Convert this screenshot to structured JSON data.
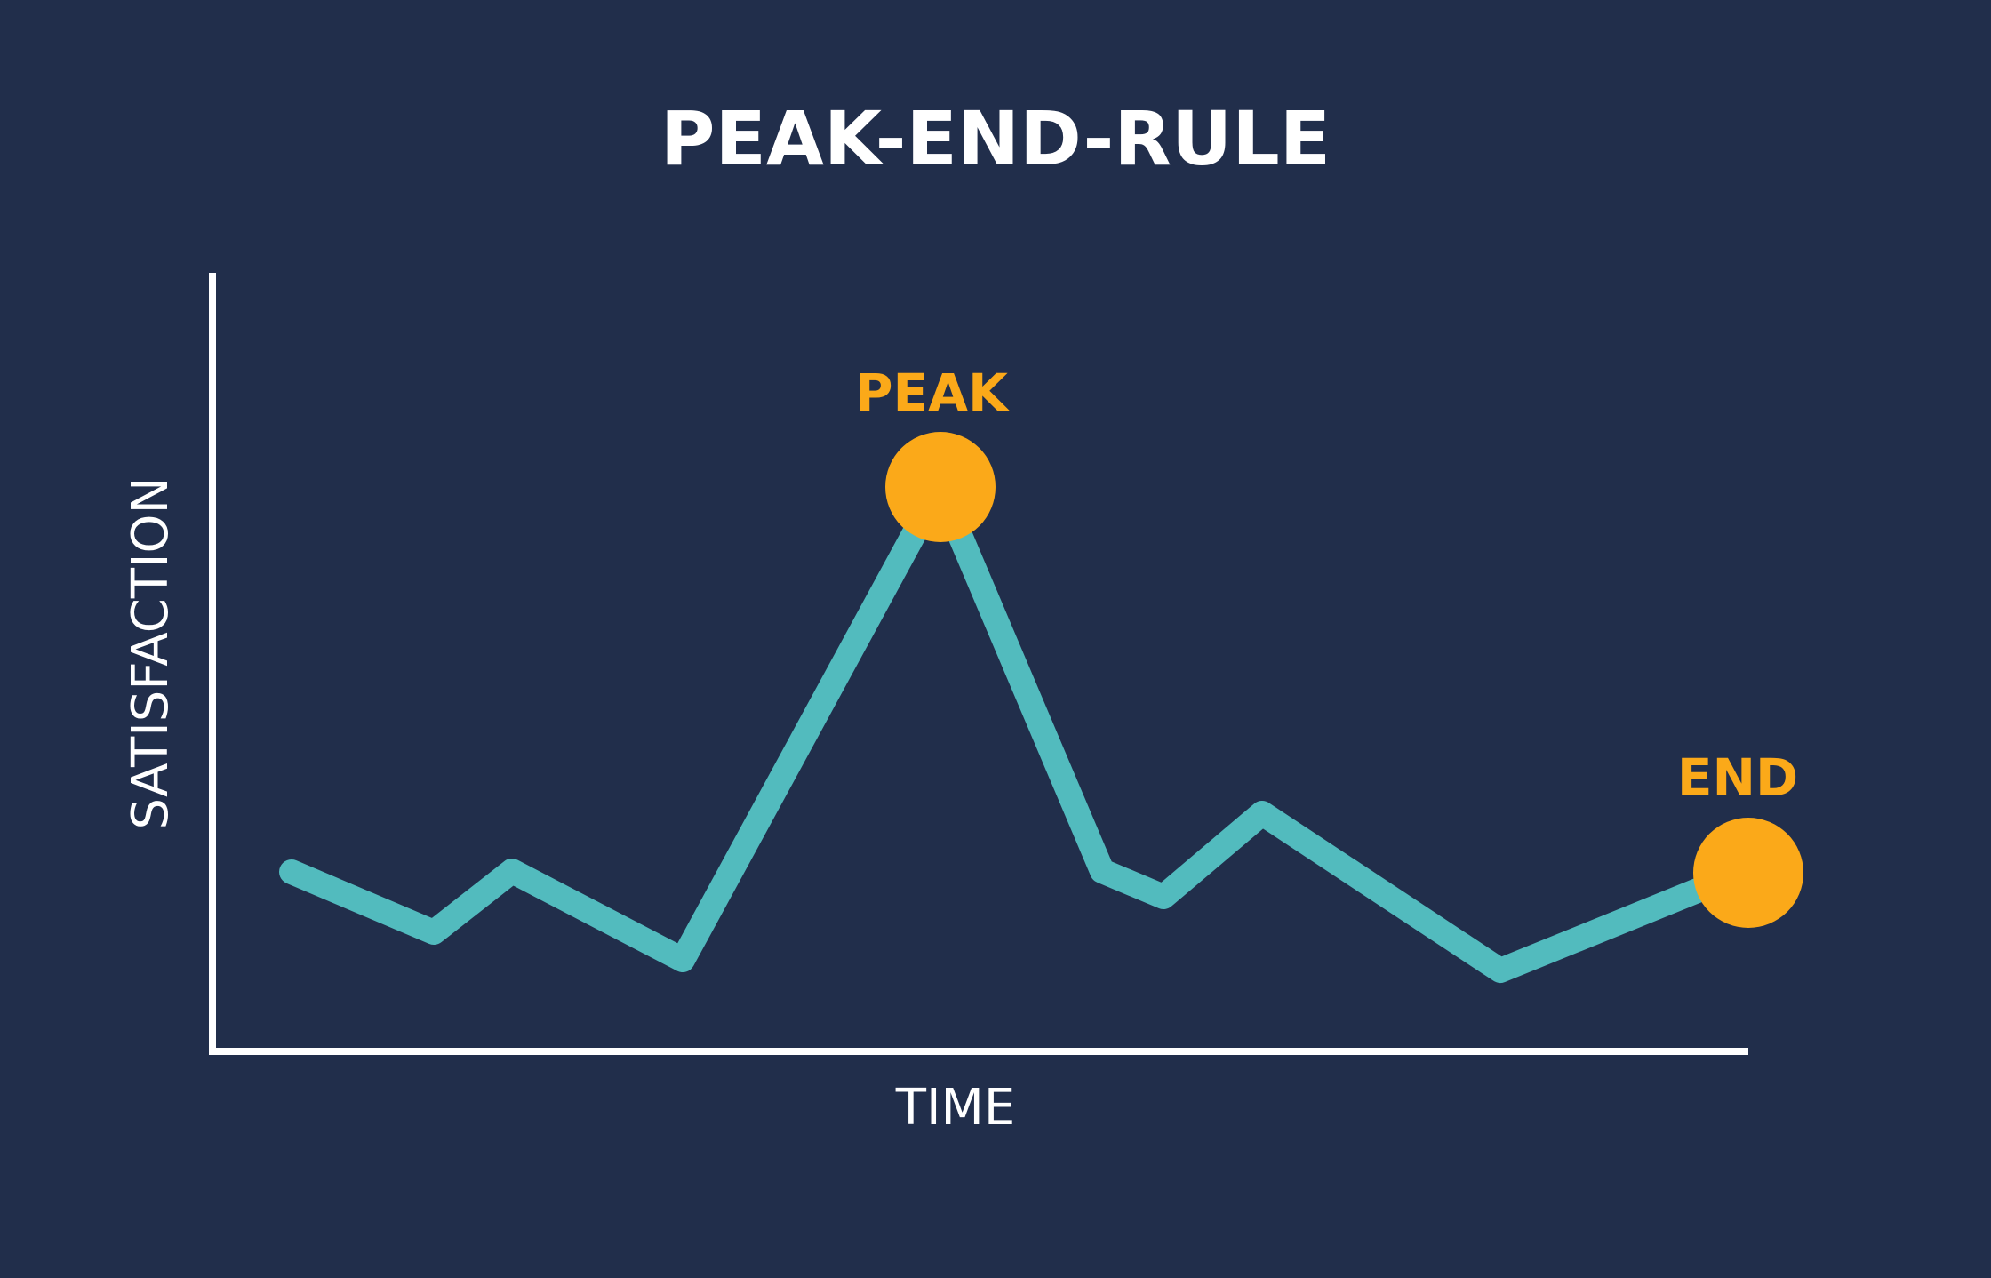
{
  "title": "PEAK-END-RULE",
  "axes": {
    "y_label": "SATISFACTION",
    "x_label": "TIME"
  },
  "colors": {
    "background": "#212e4b",
    "axis": "#ffffff",
    "line": "#52bbbe",
    "marker": "#fba919",
    "title": "#ffffff"
  },
  "markers": {
    "peak_label": "PEAK",
    "end_label": "END"
  }
}
